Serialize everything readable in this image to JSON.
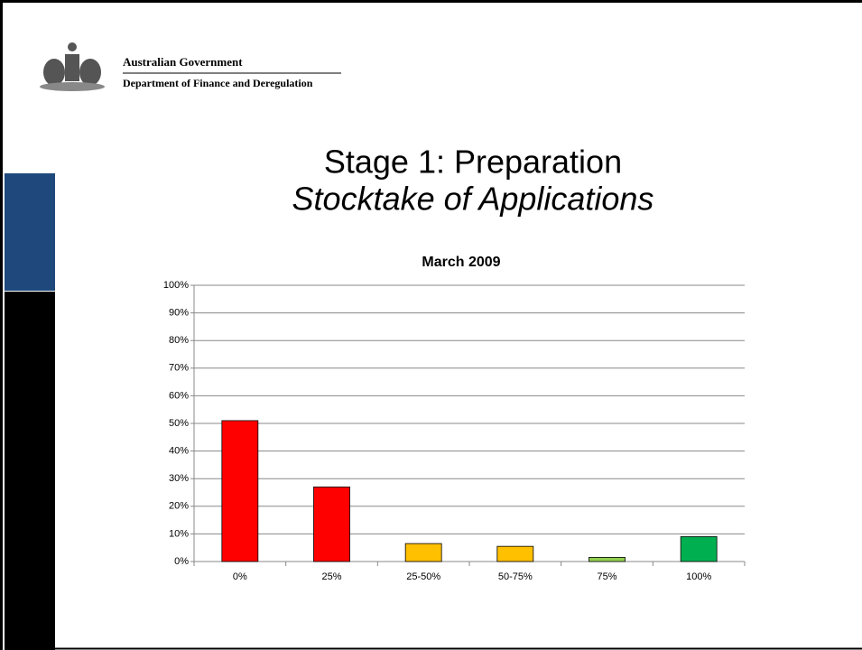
{
  "header": {
    "org": "Australian Government",
    "department": "Department of Finance and Deregulation"
  },
  "slide": {
    "title": "Stage 1: Preparation",
    "subtitle": "Stocktake of Applications"
  },
  "chart_data": {
    "type": "bar",
    "title": "March 2009",
    "categories": [
      "0%",
      "25%",
      "25-50%",
      "50-75%",
      "75%",
      "100%"
    ],
    "values": [
      51,
      27,
      6.5,
      5.5,
      1.5,
      9
    ],
    "colors": [
      "#ff0000",
      "#ff0000",
      "#ffc000",
      "#ffc000",
      "#92d050",
      "#00b050"
    ],
    "ylim": [
      0,
      100
    ],
    "yticks": [
      {
        "value": 0,
        "label": "0%"
      },
      {
        "value": 10,
        "label": "10%"
      },
      {
        "value": 20,
        "label": "20%"
      },
      {
        "value": 30,
        "label": "30%"
      },
      {
        "value": 40,
        "label": "40%"
      },
      {
        "value": 50,
        "label": "50%"
      },
      {
        "value": 60,
        "label": "60%"
      },
      {
        "value": 70,
        "label": "70%"
      },
      {
        "value": 80,
        "label": "80%"
      },
      {
        "value": 90,
        "label": "90%"
      },
      {
        "value": 100,
        "label": "100%"
      }
    ],
    "grid": true
  }
}
